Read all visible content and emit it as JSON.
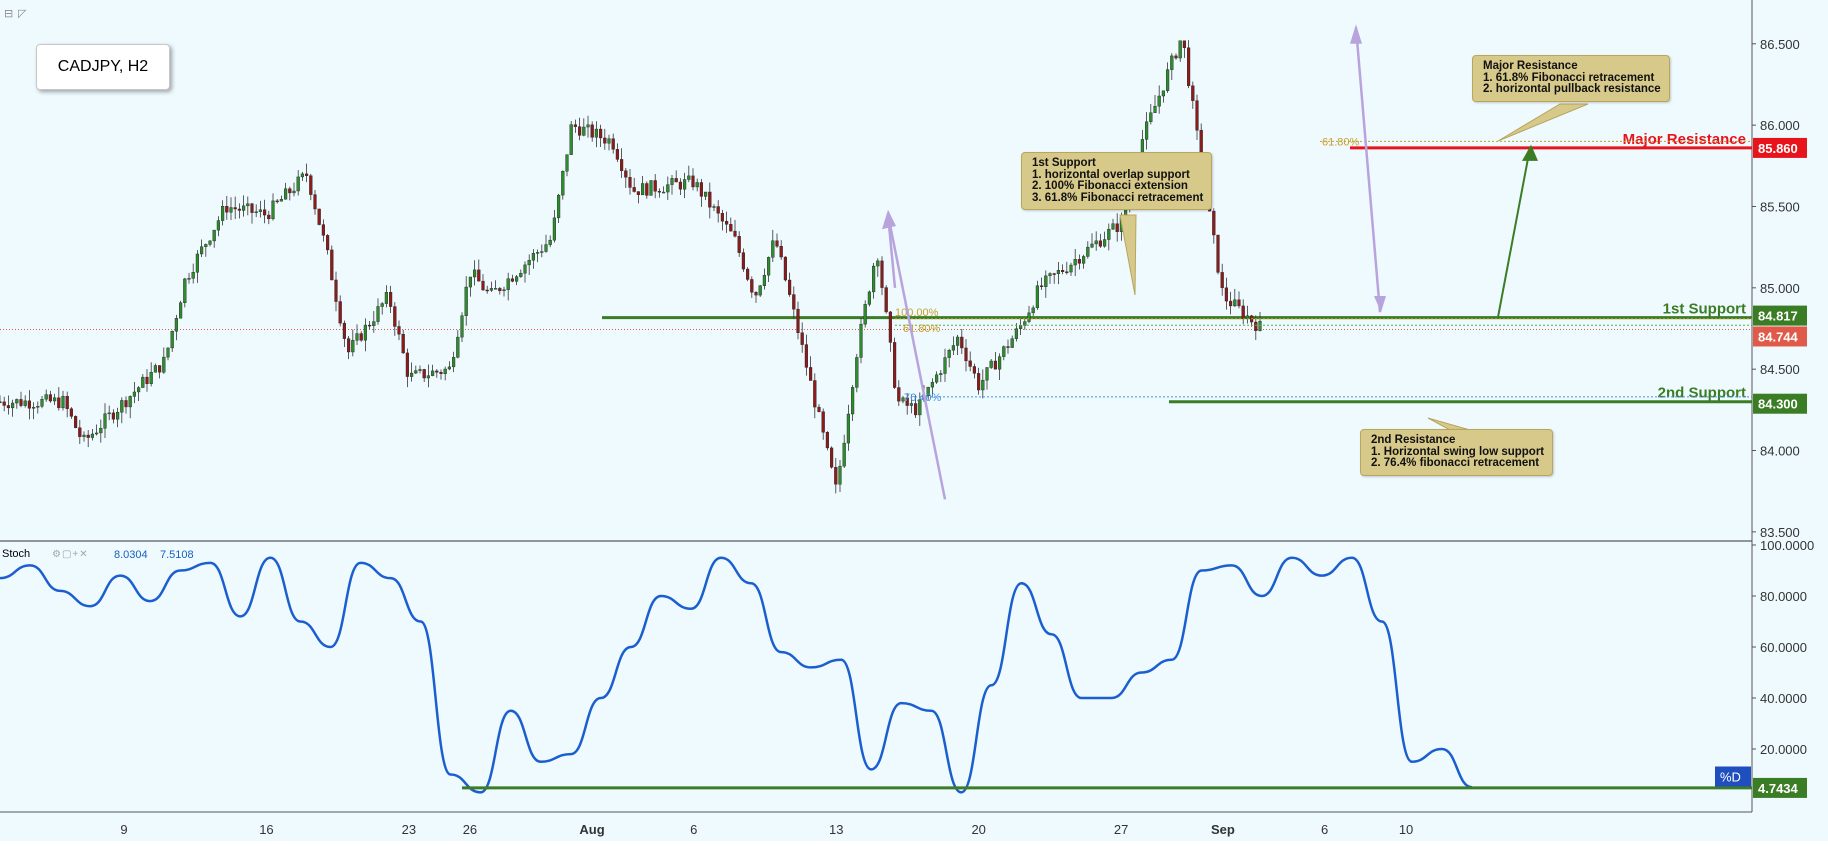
{
  "symbol": "CADJPY, H2",
  "colors": {
    "support": "#3a7d24",
    "resistance": "#e8141b",
    "stoch_line": "#1b5fcf",
    "price_last": "#e05a4a",
    "fib_dotted": "#4a90e2",
    "callout_bg": "#d6c98a"
  },
  "levels": {
    "major_resistance": {
      "label": "Major Resistance",
      "value": "85.860"
    },
    "first_support": {
      "label": "1st Support",
      "value": "84.817"
    },
    "second_support": {
      "label": "2nd Support",
      "value": "84.300"
    },
    "last_price": {
      "value": "84.744"
    }
  },
  "fib_labels": {
    "f618_top": "61.80%",
    "f100": "100.00%",
    "f618_mid": "61.80%",
    "f764": "76.40%"
  },
  "callouts": {
    "first_support": {
      "title": "1st Support",
      "lines": [
        "1. horizontal overlap support",
        "2. 100% Fibonacci extension",
        "3. 61.8% Fibonacci retracement"
      ]
    },
    "major_resistance": {
      "title": "Major Resistance",
      "lines": [
        "1. 61.8% Fibonacci retracement",
        "2. horizontal pullback resistance"
      ]
    },
    "second_resistance": {
      "title": "2nd Resistance",
      "lines": [
        "1. Horizontal swing low support",
        "2. 76.4% fibonacci retracement"
      ]
    }
  },
  "stoch": {
    "label": "Stoch",
    "value1": "8.0304",
    "value2": "7.5108",
    "pct_d_label": "%D",
    "last_value": "4.7434"
  },
  "chart_data": [
    {
      "type": "candlestick",
      "title": "CADJPY, H2",
      "ylim": [
        83.45,
        86.72
      ],
      "y_ticks": [
        "86.500",
        "86.000",
        "85.500",
        "85.000",
        "84.500",
        "84.000",
        "83.500"
      ],
      "x_tick_labels": [
        "9",
        "16",
        "23",
        "26",
        "Aug",
        "6",
        "13",
        "20",
        "27",
        "Sep",
        "6",
        "10"
      ],
      "close_path": [
        [
          "Jul 6",
          84.3
        ],
        [
          "Jul 7",
          84.05
        ],
        [
          "Jul 9",
          84.3
        ],
        [
          "Jul 11",
          84.55
        ],
        [
          "Jul 12",
          85.05
        ],
        [
          "Jul 14",
          85.5
        ],
        [
          "Jul 16",
          85.45
        ],
        [
          "Jul 18",
          85.7
        ],
        [
          "Jul 19",
          85.2
        ],
        [
          "Jul 20",
          84.6
        ],
        [
          "Jul 22",
          84.95
        ],
        [
          "Jul 23",
          84.45
        ],
        [
          "Jul 25",
          84.5
        ],
        [
          "Jul 26",
          85.1
        ],
        [
          "Jul 27",
          84.95
        ],
        [
          "Jul 30",
          85.3
        ],
        [
          "Jul 31",
          86.0
        ],
        [
          "Aug 2",
          85.9
        ],
        [
          "Aug 3",
          85.6
        ],
        [
          "Aug 6",
          85.65
        ],
        [
          "Aug 8",
          85.3
        ],
        [
          "Aug 9",
          84.95
        ],
        [
          "Aug 10",
          85.3
        ],
        [
          "Aug 11",
          84.8
        ],
        [
          "Aug 13",
          83.75
        ],
        [
          "Aug 14",
          84.6
        ],
        [
          "Aug 15",
          85.25
        ],
        [
          "Aug 16",
          84.3
        ],
        [
          "Aug 17",
          84.25
        ],
        [
          "Aug 19",
          84.7
        ],
        [
          "Aug 20",
          84.4
        ],
        [
          "Aug 22",
          84.75
        ],
        [
          "Aug 23",
          85.0
        ],
        [
          "Aug 24",
          85.1
        ],
        [
          "Aug 27",
          85.4
        ],
        [
          "Aug 28",
          85.9
        ],
        [
          "Aug 30",
          86.55
        ],
        [
          "Aug 31",
          85.7
        ],
        [
          "Sep 1",
          84.95
        ],
        [
          "Sep 3",
          84.74
        ]
      ],
      "levels": {
        "major_resistance": 85.86,
        "first_support": 84.817,
        "second_support": 84.3,
        "last_price": 84.744
      }
    },
    {
      "type": "line",
      "title": "Stoch",
      "ylim": [
        0,
        100
      ],
      "y_ticks": [
        "100.0000",
        "80.0000",
        "60.0000",
        "40.0000",
        "20.0000"
      ],
      "series": [
        {
          "name": "%D",
          "values": [
            87,
            92,
            82,
            76,
            88,
            78,
            90,
            93,
            72,
            95,
            70,
            60,
            93,
            87,
            70,
            10,
            3,
            35,
            15,
            18,
            40,
            60,
            80,
            75,
            95,
            85,
            58,
            52,
            55,
            12,
            38,
            35,
            3,
            45,
            85,
            65,
            40,
            40,
            50,
            55,
            90,
            92,
            80,
            95,
            88,
            95,
            70,
            15,
            20,
            5
          ]
        },
        {
          "name": "support",
          "values": [
            4.7434
          ]
        }
      ],
      "last_value": 4.7434
    }
  ]
}
